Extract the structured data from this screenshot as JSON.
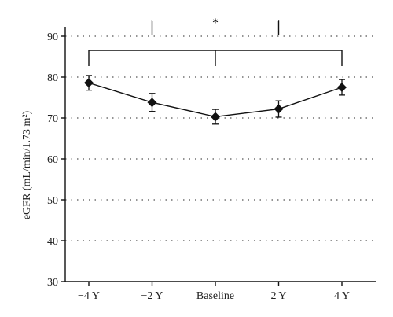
{
  "chart_data": {
    "type": "line",
    "title": "",
    "xlabel": "",
    "ylabel": "eGFR (mL/min/1.73 m²)",
    "categories": [
      "−4 Y",
      "−2 Y",
      "Baseline",
      "2 Y",
      "4 Y"
    ],
    "series": [
      {
        "values": [
          78.6,
          73.8,
          70.3,
          72.2,
          77.5
        ],
        "error": [
          1.8,
          2.2,
          1.8,
          2.0,
          1.9
        ],
        "marker": "diamond",
        "color": "#111111"
      }
    ],
    "ylim": [
      30,
      90
    ],
    "yticks": [
      30,
      40,
      50,
      60,
      70,
      80,
      90
    ],
    "grid": "horizontal dotted",
    "annotations": [
      {
        "type": "bracket",
        "from": "−4 Y",
        "to": "4 Y",
        "mid": "Baseline",
        "label": ""
      },
      {
        "type": "bracket",
        "from": "−2 Y",
        "to": "2 Y",
        "label": "*"
      }
    ]
  }
}
